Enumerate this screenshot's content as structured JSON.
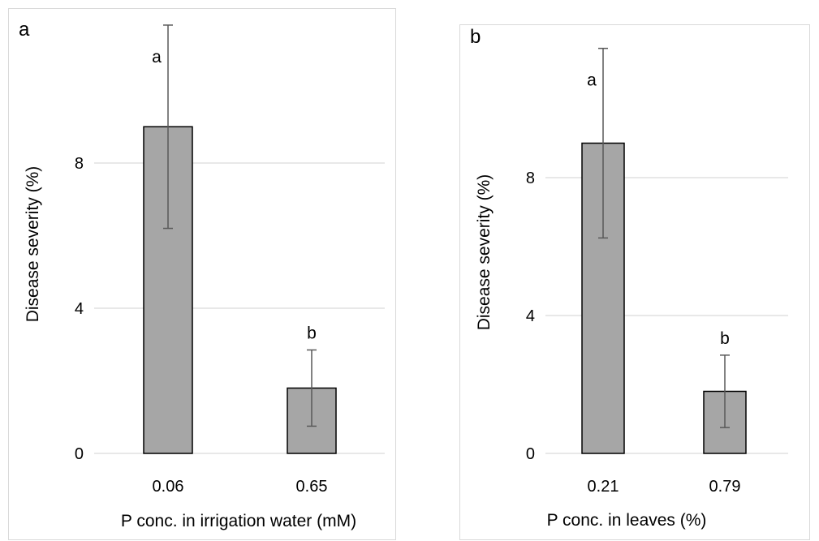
{
  "chart_data": [
    {
      "type": "bar",
      "panel_label": "a",
      "xlabel": "P conc. in irrigation water (mM)",
      "ylabel": "Disease severity (%)",
      "categories": [
        "0.06",
        "0.65"
      ],
      "values": [
        9.0,
        1.8
      ],
      "error": [
        2.8,
        1.05
      ],
      "significance": [
        "a",
        "b"
      ],
      "ylim": [
        0,
        12
      ],
      "yticks": [
        0,
        4,
        8
      ],
      "ytick_labels": [
        "0",
        "4",
        "8"
      ],
      "grid": true,
      "bar_color": "#a6a6a6",
      "error_color": "#595959",
      "grid_color": "#d9d9d9"
    },
    {
      "type": "bar",
      "panel_label": "b",
      "xlabel": "P conc. in leaves (%)",
      "ylabel": "Disease severity (%)",
      "categories": [
        "0.21",
        "0.79"
      ],
      "values": [
        9.0,
        1.8
      ],
      "error": [
        2.75,
        1.05
      ],
      "significance": [
        "a",
        "b"
      ],
      "ylim": [
        0,
        12
      ],
      "yticks": [
        0,
        4,
        8
      ],
      "ytick_labels": [
        "0",
        "4",
        "8"
      ],
      "grid": true,
      "bar_color": "#a6a6a6",
      "error_color": "#595959",
      "grid_color": "#d9d9d9"
    }
  ]
}
